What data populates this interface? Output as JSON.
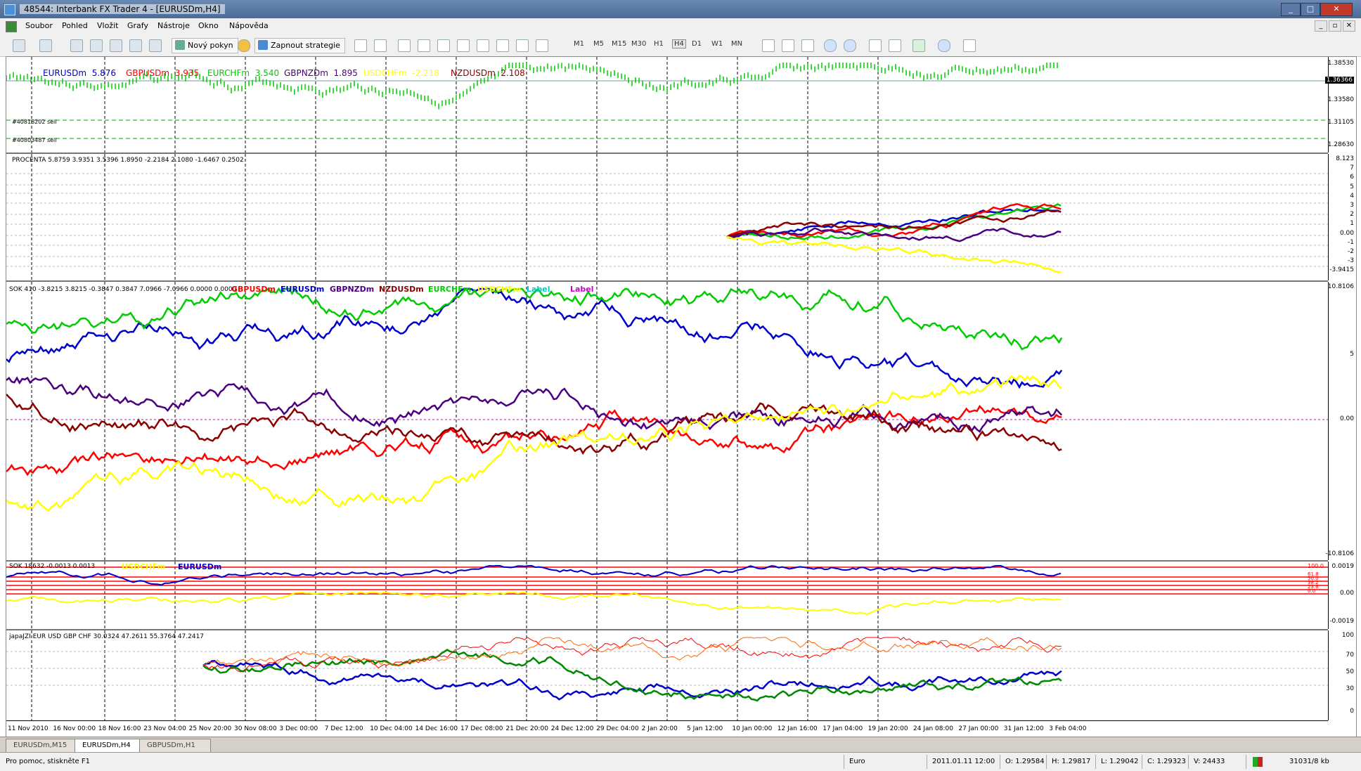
{
  "window": {
    "title": "48544: Interbank FX Trader 4 - [EURUSDm,H4]"
  },
  "menu": [
    "Soubor",
    "Pohled",
    "Vložit",
    "Grafy",
    "Nástroje",
    "Okno",
    "Nápověda"
  ],
  "toolbar": {
    "new_order": "Nový pokyn",
    "strategies": "Zapnout strategie",
    "timeframes": [
      "M1",
      "M5",
      "M15",
      "M30",
      "H1",
      "H4",
      "D1",
      "W1",
      "MN"
    ],
    "active_timeframe": "H4"
  },
  "main_panel": {
    "legend": [
      {
        "label": "EURUSDm",
        "value": "5.876",
        "color": "#0000cc"
      },
      {
        "label": "GBPUSDm",
        "value": "3.935",
        "color": "#ff0000"
      },
      {
        "label": "EURCHFm",
        "value": "3.540",
        "color": "#00cc00"
      },
      {
        "label": "GBPNZDm",
        "value": "1.895",
        "color": "#4b0082"
      },
      {
        "label": "USDCHFm",
        "value": "-2.218",
        "color": "#ffff00"
      },
      {
        "label": "NZDUSDm",
        "value": "2.108",
        "color": "#8b0000"
      }
    ],
    "order_lines": [
      "#40818202 sell",
      "#40803487 sell"
    ],
    "price_ticks": [
      "1.38530",
      "1.36366",
      "1.33580",
      "1.31105",
      "1.28630"
    ],
    "current_price": "1.36366"
  },
  "procenta": {
    "label": "PROCENTA  5.8759 3.9351 3.5396 1.8950 -2.2184 2.1080 -1.6467 0.2502",
    "ticks": [
      "8.123",
      "7",
      "6",
      "5",
      "4",
      "3",
      "2",
      "1",
      "0.00",
      "-1",
      "-2",
      "-3",
      "-3.9415"
    ]
  },
  "sok410": {
    "label": "SOK 410 -3.8215 3.8215 -0.3847 0.3847 7.0966 -7.0966 0.0000 0.0000",
    "legend": [
      {
        "label": "GBPUSDm",
        "color": "#ff0000"
      },
      {
        "label": "EURUSDm",
        "color": "#0000cc"
      },
      {
        "label": "GBPNZDm",
        "color": "#4b0082"
      },
      {
        "label": "NZDUSDm",
        "color": "#8b0000"
      },
      {
        "label": "EURCHFm",
        "color": "#00cc00"
      },
      {
        "label": "USDCHFm",
        "color": "#ffff00"
      },
      {
        "label": "Label",
        "color": "#00cccc"
      },
      {
        "label": "Label",
        "color": "#cc00cc"
      }
    ],
    "ticks": [
      "10.8106",
      "5",
      "0.00",
      "-10.8106"
    ]
  },
  "sok18632": {
    "label": "SOK 18632 -0.0013 0.0013",
    "legend": [
      {
        "label": "USDCHFm",
        "color": "#ffff00"
      },
      {
        "label": "EURUSDm",
        "color": "#0000cc"
      }
    ],
    "ticks": [
      "0.0019",
      "0.00",
      "-0.0019"
    ],
    "fib_labels": [
      "100.0",
      "61.8",
      "50.0",
      "38.2",
      "23.6",
      "0.0"
    ]
  },
  "japa": {
    "label": "japaJZI EUR USD GBP CHF 30.0324 47.2611 55.3764 47.2417",
    "ticks": [
      "100",
      "70",
      "50",
      "30",
      "0"
    ]
  },
  "dates": [
    "11 Nov 2010",
    "16 Nov 00:00",
    "18 Nov 16:00",
    "23 Nov 04:00",
    "25 Nov 20:00",
    "30 Nov 08:00",
    "3 Dec 00:00",
    "7 Dec 12:00",
    "10 Dec 04:00",
    "14 Dec 16:00",
    "17 Dec 08:00",
    "21 Dec 20:00",
    "24 Dec 12:00",
    "29 Dec 04:00",
    "2 Jan 20:00",
    "5 Jan 12:00",
    "10 Jan 00:00",
    "12 Jan 16:00",
    "17 Jan 04:00",
    "19 Jan 20:00",
    "24 Jan 08:00",
    "27 Jan 00:00",
    "31 Jan 12:00",
    "3 Feb 04:00"
  ],
  "tabs": [
    "EURUSDm,M15",
    "EURUSDm,H4",
    "GBPUSDm,H1"
  ],
  "active_tab": "EURUSDm,H4",
  "status": {
    "help": "Pro pomoc, stiskněte F1",
    "profile": "Euro",
    "datetime": "2011.01.11 12:00",
    "open": "O: 1.29584",
    "high": "H: 1.29817",
    "low": "L: 1.29042",
    "close": "C: 1.29323",
    "volume": "V: 24433",
    "traffic": "31031/8 kb"
  },
  "colors": {
    "eur": "#0000cc",
    "gbp": "#ff0000",
    "chf": "#00cc00",
    "nzd": "#4b0082",
    "usdchf": "#ffff00",
    "nzdusd": "#8b0000",
    "price": "#00cc00"
  }
}
